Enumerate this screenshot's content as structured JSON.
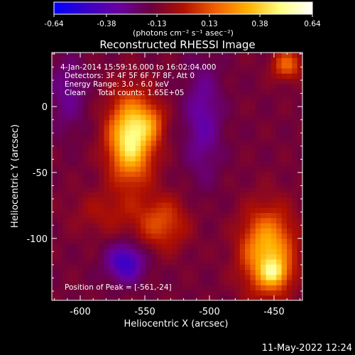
{
  "colorbar": {
    "tick_labels": [
      "-0.64",
      "-0.38",
      "-0.13",
      "0.13",
      "0.38",
      "0.64"
    ],
    "tick_values": [
      -0.64,
      -0.38,
      -0.13,
      0.13,
      0.38,
      0.64
    ],
    "range": [
      -0.64,
      0.64
    ],
    "units_label": "(photons cm⁻² s⁻¹ asec⁻²)",
    "colors": [
      "#0000ff",
      "#3a00c8",
      "#6a00a0",
      "#6a0040",
      "#b01000",
      "#f06000",
      "#ffb000",
      "#ffff80",
      "#ffffff"
    ]
  },
  "chart_data": {
    "type": "heatmap",
    "title": "Reconstructed RHESSI Image",
    "xlabel": "Heliocentric X (arcsec)",
    "ylabel": "Heliocentric Y (arcsec)",
    "xlim": [
      -622,
      -428
    ],
    "ylim": [
      -147,
      41
    ],
    "x_ticks": [
      -600,
      -550,
      -500,
      -450
    ],
    "x_tick_labels": [
      "-600",
      "-550",
      "-500",
      "-450"
    ],
    "y_ticks": [
      -100,
      -50,
      0
    ],
    "y_tick_labels": [
      "-100",
      "-50",
      "0"
    ],
    "annotation_lines": [
      "4-Jan-2014 15:59:16.000 to 16:02:04.000",
      "Detectors: 3F 4F 5F 6F 7F 8F, Att 0",
      "Energy Range: 3.0 - 6.0 keV",
      "Clean     Total counts: 1.65E+05"
    ],
    "peak_label": "Position of Peak = [-561,-24]",
    "peak_position": [
      -561,
      -24
    ],
    "sources": [
      {
        "x": -561,
        "y": -24,
        "sx": 12,
        "sy": 22,
        "amp": 0.64
      },
      {
        "x": -545,
        "y": -12,
        "sx": 8,
        "sy": 10,
        "amp": 0.2
      },
      {
        "x": -537,
        "y": -88,
        "sx": 14,
        "sy": 14,
        "amp": 0.25
      },
      {
        "x": -455,
        "y": -110,
        "sx": 14,
        "sy": 22,
        "amp": 0.5
      },
      {
        "x": -450,
        "y": -126,
        "sx": 7,
        "sy": 7,
        "amp": 0.3
      },
      {
        "x": -440,
        "y": 32,
        "sx": 8,
        "sy": 8,
        "amp": 0.3
      },
      {
        "x": -580,
        "y": -80,
        "sx": 18,
        "sy": 12,
        "amp": 0.12
      },
      {
        "x": -565,
        "y": -118,
        "sx": 10,
        "sy": 10,
        "amp": -0.35
      },
      {
        "x": -505,
        "y": -10,
        "sx": 10,
        "sy": 30,
        "amp": -0.2
      },
      {
        "x": -610,
        "y": 10,
        "sx": 10,
        "sy": 20,
        "amp": -0.15
      }
    ]
  },
  "footer": {
    "timestamp": "11-May-2022 12:24"
  }
}
